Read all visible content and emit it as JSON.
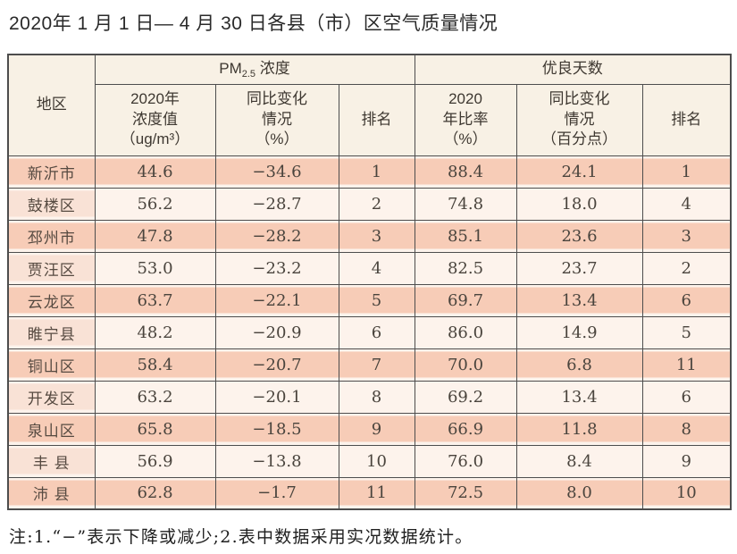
{
  "title": "2020年 1 月 1 日— 4 月 30 日各县（市）区空气质量情况",
  "table": {
    "headers": {
      "region": "地区",
      "pm_group": {
        "prefix": "PM",
        "sub": "2.5",
        "suffix": " 浓度"
      },
      "good_days_group": "优良天数",
      "pm_value": "2020年\n浓度值\n（ug/m³）",
      "pm_change": "同比变化\n情况\n（%）",
      "pm_rank": "排名",
      "good_ratio": "2020\n年比率\n（%）",
      "good_change": "同比变化\n情况\n（百分点）",
      "good_rank": "排名"
    },
    "rows": [
      {
        "region": "新沂市",
        "pm_value": "44.6",
        "pm_change": "−34.6",
        "pm_rank": "1",
        "good_ratio": "88.4",
        "good_change": "24.1",
        "good_rank": "1"
      },
      {
        "region": "鼓楼区",
        "pm_value": "56.2",
        "pm_change": "−28.7",
        "pm_rank": "2",
        "good_ratio": "74.8",
        "good_change": "18.0",
        "good_rank": "4"
      },
      {
        "region": "邳州市",
        "pm_value": "47.8",
        "pm_change": "−28.2",
        "pm_rank": "3",
        "good_ratio": "85.1",
        "good_change": "23.6",
        "good_rank": "3"
      },
      {
        "region": "贾汪区",
        "pm_value": "53.0",
        "pm_change": "−23.2",
        "pm_rank": "4",
        "good_ratio": "82.5",
        "good_change": "23.7",
        "good_rank": "2"
      },
      {
        "region": "云龙区",
        "pm_value": "63.7",
        "pm_change": "−22.1",
        "pm_rank": "5",
        "good_ratio": "69.7",
        "good_change": "13.4",
        "good_rank": "6"
      },
      {
        "region": "睢宁县",
        "pm_value": "48.2",
        "pm_change": "−20.9",
        "pm_rank": "6",
        "good_ratio": "86.0",
        "good_change": "14.9",
        "good_rank": "5"
      },
      {
        "region": "铜山区",
        "pm_value": "58.4",
        "pm_change": "−20.7",
        "pm_rank": "7",
        "good_ratio": "70.0",
        "good_change": "6.8",
        "good_rank": "11"
      },
      {
        "region": "开发区",
        "pm_value": "63.2",
        "pm_change": "−20.1",
        "pm_rank": "8",
        "good_ratio": "69.2",
        "good_change": "13.4",
        "good_rank": "6"
      },
      {
        "region": "泉山区",
        "pm_value": "65.8",
        "pm_change": "−18.5",
        "pm_rank": "9",
        "good_ratio": "66.9",
        "good_change": "11.8",
        "good_rank": "8"
      },
      {
        "region": "丰 县",
        "pm_value": "56.9",
        "pm_change": "−13.8",
        "pm_rank": "10",
        "good_ratio": "76.0",
        "good_change": "8.4",
        "good_rank": "9"
      },
      {
        "region": "沛 县",
        "pm_value": "62.8",
        "pm_change": "−1.7",
        "pm_rank": "11",
        "good_ratio": "72.5",
        "good_change": "8.0",
        "good_rank": "10"
      }
    ]
  },
  "footnote": "注:1.“−”表示下降或减少;2.表中数据采用实况数据统计。",
  "colors": {
    "row_salmon": "#f7ccb7",
    "row_light": "#fdf3ec",
    "region_even": "#f9e2d6",
    "header_bg": "#f8f1e5",
    "border": "#4d4d4d"
  }
}
